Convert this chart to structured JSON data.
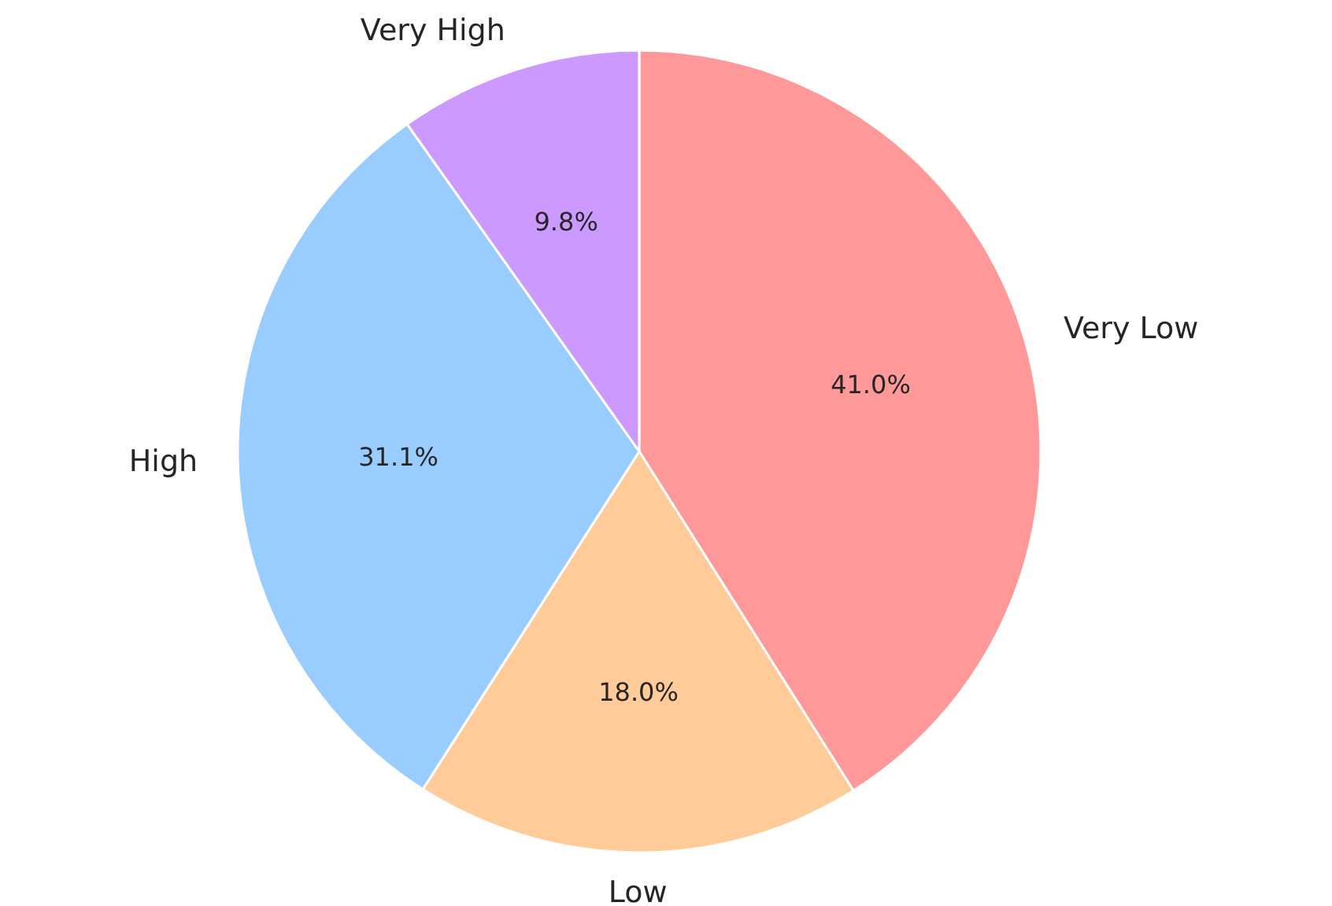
{
  "chart_data": {
    "type": "pie",
    "categories": [
      "Very Low",
      "Low",
      "High",
      "Very High"
    ],
    "values": [
      41.0,
      18.0,
      31.1,
      9.8
    ],
    "value_labels": [
      "41.0%",
      "18.0%",
      "31.1%",
      "9.8%"
    ],
    "colors": [
      "#ff9999",
      "#ffcc99",
      "#99ccff",
      "#cc99ff"
    ]
  }
}
